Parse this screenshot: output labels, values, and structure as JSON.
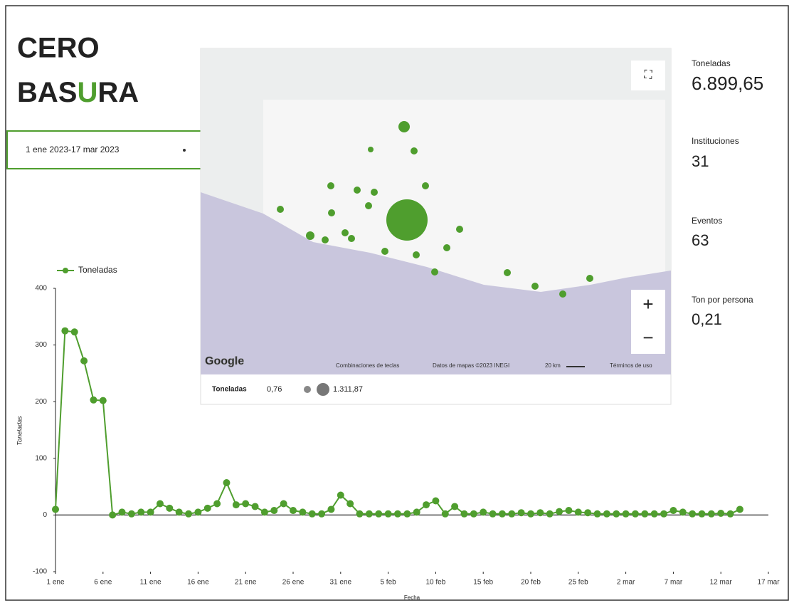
{
  "header": {
    "title_line1": "CERO",
    "title_line2": "BASURA"
  },
  "date_range": "1 ene 2023-17 mar 2023",
  "map": {
    "fullscreen": "⛶",
    "zoom_in": "+",
    "zoom_out": "−",
    "logo": "Google",
    "shortcuts": "Combinaciones de teclas",
    "map_data": "Datos de mapas ©2023 INEGI",
    "scale": "20 km",
    "terms": "Términos de uso",
    "legend": {
      "label": "Toneladas",
      "min": "0,76",
      "max": "1.311,87"
    }
  },
  "kpis": [
    {
      "label": "Toneladas",
      "value": "6.899,65"
    },
    {
      "label": "Instituciones",
      "value": "31"
    },
    {
      "label": "Eventos",
      "value": "63"
    },
    {
      "label": "Ton por persona",
      "value": "0,21"
    }
  ],
  "chart_data": {
    "type": "line",
    "x_label": "Fecha",
    "y_label": "Toneladas",
    "x": [
      0,
      1,
      2,
      3,
      4,
      5,
      6,
      7,
      8,
      9,
      10,
      11,
      12,
      13,
      14,
      15,
      16,
      17,
      18,
      19,
      20,
      21,
      22,
      23,
      24,
      25,
      26,
      27,
      28,
      29,
      30,
      31,
      32,
      33,
      34,
      35,
      36,
      37,
      38,
      39,
      40,
      41,
      42,
      43,
      44,
      45,
      46,
      47,
      48,
      49,
      50,
      51,
      52,
      53,
      54,
      55,
      56,
      57,
      58,
      59,
      60,
      61,
      62,
      63,
      64,
      65,
      66,
      67,
      68,
      69,
      70,
      71,
      72
    ],
    "series": [
      {
        "name": "Toneladas",
        "color": "#4f9e2e",
        "values": [
          10,
          325,
          323,
          272,
          203,
          202,
          0,
          5,
          2,
          5,
          5,
          20,
          12,
          5,
          2,
          5,
          12,
          20,
          57,
          18,
          20,
          15,
          5,
          8,
          20,
          8,
          5,
          2,
          2,
          10,
          35,
          20,
          2,
          2,
          2,
          2,
          2,
          2,
          5,
          18,
          25,
          2,
          15,
          2,
          2,
          5,
          2,
          2,
          2,
          4,
          2,
          4,
          2,
          6,
          8,
          5,
          4,
          2,
          2,
          2,
          2,
          2,
          2,
          2,
          2,
          8,
          5,
          2,
          2,
          2,
          3,
          2,
          10
        ]
      }
    ],
    "xlim": [
      0,
      75
    ],
    "xticks": [
      {
        "value": 0,
        "label": "1 ene"
      },
      {
        "value": 5,
        "label": "6 ene"
      },
      {
        "value": 10,
        "label": "11 ene"
      },
      {
        "value": 15,
        "label": "16 ene"
      },
      {
        "value": 20,
        "label": "21 ene"
      },
      {
        "value": 25,
        "label": "26 ene"
      },
      {
        "value": 30,
        "label": "31 ene"
      },
      {
        "value": 35,
        "label": "5 feb"
      },
      {
        "value": 40,
        "label": "10 feb"
      },
      {
        "value": 45,
        "label": "15 feb"
      },
      {
        "value": 50,
        "label": "20 feb"
      },
      {
        "value": 55,
        "label": "25 feb"
      },
      {
        "value": 60,
        "label": "2 mar"
      },
      {
        "value": 65,
        "label": "7 mar"
      },
      {
        "value": 70,
        "label": "12 mar"
      },
      {
        "value": 75,
        "label": "17 mar"
      }
    ],
    "ylim": [
      -100,
      400
    ],
    "yticks": [
      -100,
      0,
      100,
      200,
      300,
      400
    ],
    "legend": "top-left"
  }
}
